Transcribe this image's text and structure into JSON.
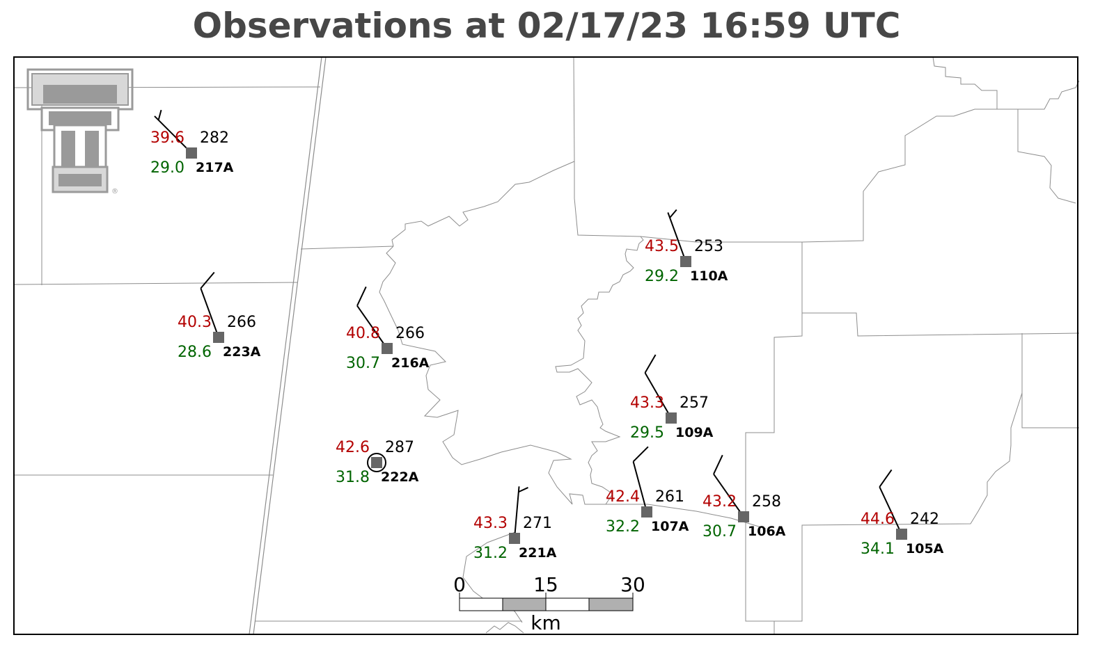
{
  "title": "Observations at 02/17/23 16:59 UTC",
  "colors": {
    "temperature": "#b30000",
    "dewpoint": "#006400",
    "station_marker": "#666666",
    "boundaries": "#8c8c8c",
    "logo": "#9a9a9a"
  },
  "logo": {
    "name": "texas-tech-double-t-logo",
    "text": "®"
  },
  "scale_bar": {
    "labels": [
      "0",
      "15",
      "30"
    ],
    "unit": "km"
  },
  "stations": [
    {
      "id": "217A",
      "temp": "39.6",
      "dewpoint": "29.0",
      "pressure": "282",
      "wind_from_deg": 315,
      "barbs": "half"
    },
    {
      "id": "223A",
      "temp": "40.3",
      "dewpoint": "28.6",
      "pressure": "266",
      "wind_from_deg": 340,
      "barbs": "full"
    },
    {
      "id": "216A",
      "temp": "40.8",
      "dewpoint": "30.7",
      "pressure": "266",
      "wind_from_deg": 325,
      "barbs": "full"
    },
    {
      "id": "222A",
      "temp": "42.6",
      "dewpoint": "31.8",
      "pressure": "287",
      "wind_from_deg": null,
      "barbs": "calm"
    },
    {
      "id": "221A",
      "temp": "43.3",
      "dewpoint": "31.2",
      "pressure": "271",
      "wind_from_deg": 5,
      "barbs": "half"
    },
    {
      "id": "110A",
      "temp": "43.5",
      "dewpoint": "29.2",
      "pressure": "253",
      "wind_from_deg": 340,
      "barbs": "half"
    },
    {
      "id": "109A",
      "temp": "43.3",
      "dewpoint": "29.5",
      "pressure": "257",
      "wind_from_deg": 330,
      "barbs": "full"
    },
    {
      "id": "107A",
      "temp": "42.4",
      "dewpoint": "32.2",
      "pressure": "261",
      "wind_from_deg": 345,
      "barbs": "full"
    },
    {
      "id": "106A",
      "temp": "43.2",
      "dewpoint": "30.7",
      "pressure": "258",
      "wind_from_deg": 325,
      "barbs": "full"
    },
    {
      "id": "105A",
      "temp": "44.6",
      "dewpoint": "34.1",
      "pressure": "242",
      "wind_from_deg": 335,
      "barbs": "full"
    }
  ]
}
